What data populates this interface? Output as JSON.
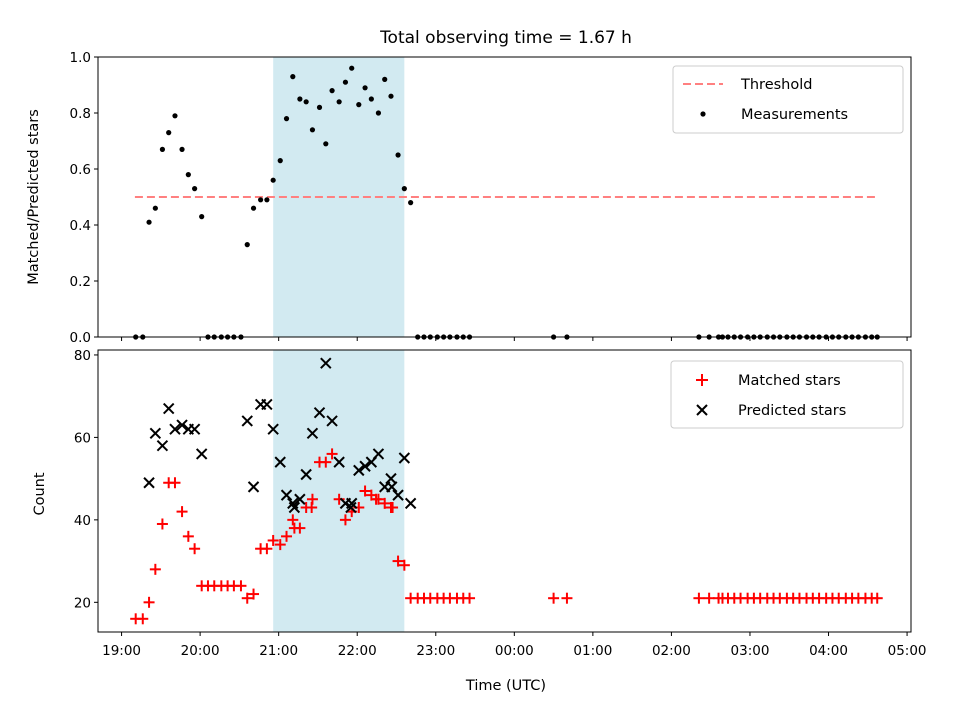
{
  "chart_data": [
    {
      "type": "scatter",
      "title": "Total observing time = 1.67 h",
      "ylabel": "Matched/Predicted stars",
      "ylim": [
        0,
        1.0
      ],
      "yticks": [
        "0.0",
        "0.2",
        "0.4",
        "0.6",
        "0.8",
        "1.0"
      ],
      "highlight_span": {
        "start": 20.93,
        "end": 22.6,
        "color": "#add8e6"
      },
      "threshold": {
        "name": "Threshold",
        "value": 0.5,
        "x_start": 19.17,
        "x_end": 28.62,
        "color": "#ff8080"
      },
      "legend": {
        "position": "top-right",
        "entries": [
          "Threshold",
          "Measurements"
        ]
      },
      "series": [
        {
          "name": "Measurements",
          "marker": "dot",
          "color": "#000000",
          "x": [
            19.18,
            19.27,
            19.35,
            19.43,
            19.52,
            19.6,
            19.68,
            19.77,
            19.85,
            19.93,
            20.02,
            20.1,
            20.18,
            20.27,
            20.35,
            20.43,
            20.52,
            20.6,
            20.68,
            20.77,
            20.85,
            20.93,
            21.02,
            21.1,
            21.18,
            21.27,
            21.35,
            21.43,
            21.52,
            21.6,
            21.68,
            21.77,
            21.85,
            21.93,
            22.02,
            22.1,
            22.18,
            22.27,
            22.35,
            22.43,
            22.52,
            22.6,
            22.68,
            22.77,
            22.85,
            22.93,
            23.02,
            23.1,
            23.18,
            23.27,
            23.35,
            23.43,
            24.5,
            24.67,
            26.35,
            26.48,
            26.6,
            26.65,
            26.72,
            26.8,
            26.88,
            26.97,
            27.05,
            27.13,
            27.22,
            27.3,
            27.38,
            27.47,
            27.55,
            27.63,
            27.72,
            27.8,
            27.88,
            27.97,
            28.05,
            28.13,
            28.22,
            28.3,
            28.38,
            28.47,
            28.55,
            28.62
          ],
          "y": [
            0.0,
            0.0,
            0.41,
            0.46,
            0.67,
            0.73,
            0.79,
            0.67,
            0.58,
            0.53,
            0.43,
            0.0,
            0.0,
            0.0,
            0.0,
            0.0,
            0.0,
            0.33,
            0.46,
            0.49,
            0.49,
            0.56,
            0.63,
            0.78,
            0.93,
            0.85,
            0.84,
            0.74,
            0.82,
            0.69,
            0.88,
            0.84,
            0.91,
            0.96,
            0.83,
            0.89,
            0.85,
            0.8,
            0.92,
            0.86,
            0.65,
            0.53,
            0.48,
            0.0,
            0.0,
            0.0,
            0.0,
            0.0,
            0.0,
            0.0,
            0.0,
            0.0,
            0.0,
            0.0,
            0.0,
            0.0,
            0.0,
            0.0,
            0.0,
            0.0,
            0.0,
            0.0,
            0.0,
            0.0,
            0.0,
            0.0,
            0.0,
            0.0,
            0.0,
            0.0,
            0.0,
            0.0,
            0.0,
            0.0,
            0.0,
            0.0,
            0.0,
            0.0,
            0.0,
            0.0,
            0.0,
            0.0
          ]
        }
      ]
    },
    {
      "type": "scatter",
      "xlabel": "Time (UTC)",
      "ylabel": "Count",
      "xlim": [
        18.7,
        29.05
      ],
      "ylim": [
        12.8,
        81.2
      ],
      "yticks": [
        "20",
        "40",
        "60",
        "80"
      ],
      "xtick_values": [
        19,
        20,
        21,
        22,
        23,
        24,
        25,
        26,
        27,
        28,
        29
      ],
      "xtick_labels": [
        "19:00",
        "20:00",
        "21:00",
        "22:00",
        "23:00",
        "00:00",
        "01:00",
        "02:00",
        "03:00",
        "04:00",
        "05:00"
      ],
      "highlight_span": {
        "start": 20.93,
        "end": 22.6,
        "color": "#add8e6"
      },
      "legend": {
        "position": "top-right",
        "entries": [
          "Matched stars",
          "Predicted stars"
        ]
      },
      "series": [
        {
          "name": "Matched stars",
          "marker": "plus",
          "color": "#ff0000",
          "x": [
            19.18,
            19.27,
            19.35,
            19.43,
            19.52,
            19.6,
            19.68,
            19.77,
            19.85,
            19.93,
            20.02,
            20.1,
            20.18,
            20.27,
            20.35,
            20.43,
            20.52,
            20.6,
            20.68,
            20.77,
            20.85,
            20.93,
            21.02,
            21.1,
            21.18,
            21.27,
            21.35,
            21.43,
            21.52,
            21.6,
            21.68,
            21.77,
            21.85,
            21.93,
            22.02,
            22.1,
            22.18,
            22.27,
            22.35,
            22.43,
            22.52,
            22.6,
            22.68,
            22.77,
            22.85,
            22.93,
            23.02,
            23.1,
            23.18,
            23.27,
            23.35,
            23.43,
            24.5,
            24.67,
            26.35,
            26.48,
            26.6,
            26.65,
            26.72,
            26.8,
            26.88,
            26.97,
            27.05,
            27.13,
            27.22,
            27.3,
            27.38,
            27.47,
            27.55,
            27.63,
            27.72,
            27.8,
            27.88,
            27.97,
            28.05,
            28.13,
            28.22,
            28.3,
            28.38,
            28.47,
            28.55,
            28.62,
            21.2,
            21.42,
            22.24,
            22.45
          ],
          "y": [
            16,
            16,
            20,
            28,
            39,
            49,
            49,
            42,
            36,
            33,
            24,
            24,
            24,
            24,
            24,
            24,
            24,
            21,
            22,
            33,
            33,
            35,
            34,
            36,
            40,
            38,
            43,
            45,
            54,
            54,
            56,
            45,
            40,
            42,
            43,
            47,
            46,
            45,
            44,
            43,
            30,
            29,
            21,
            21,
            21,
            21,
            21,
            21,
            21,
            21,
            21,
            21,
            21,
            21,
            21,
            21,
            21,
            21,
            21,
            21,
            21,
            21,
            21,
            21,
            21,
            21,
            21,
            21,
            21,
            21,
            21,
            21,
            21,
            21,
            21,
            21,
            21,
            21,
            21,
            21,
            21,
            21,
            38,
            43,
            45,
            43
          ]
        },
        {
          "name": "Predicted stars",
          "marker": "x",
          "color": "#000000",
          "x": [
            19.35,
            19.43,
            19.52,
            19.6,
            19.68,
            19.77,
            19.85,
            19.93,
            20.02,
            20.6,
            20.68,
            20.77,
            20.85,
            20.93,
            21.02,
            21.1,
            21.18,
            21.27,
            21.35,
            21.43,
            21.52,
            21.6,
            21.68,
            21.77,
            21.85,
            21.93,
            22.02,
            22.1,
            22.18,
            22.27,
            22.35,
            22.43,
            22.52,
            22.6,
            22.68,
            21.2,
            21.92,
            22.44
          ],
          "y": [
            49,
            61,
            58,
            67,
            62,
            63,
            62,
            62,
            56,
            64,
            48,
            68,
            68,
            62,
            54,
            46,
            44,
            45,
            51,
            61,
            66,
            78,
            64,
            54,
            44,
            44,
            52,
            53,
            54,
            56,
            48,
            50,
            46,
            55,
            44,
            43,
            43,
            48
          ]
        }
      ]
    }
  ]
}
